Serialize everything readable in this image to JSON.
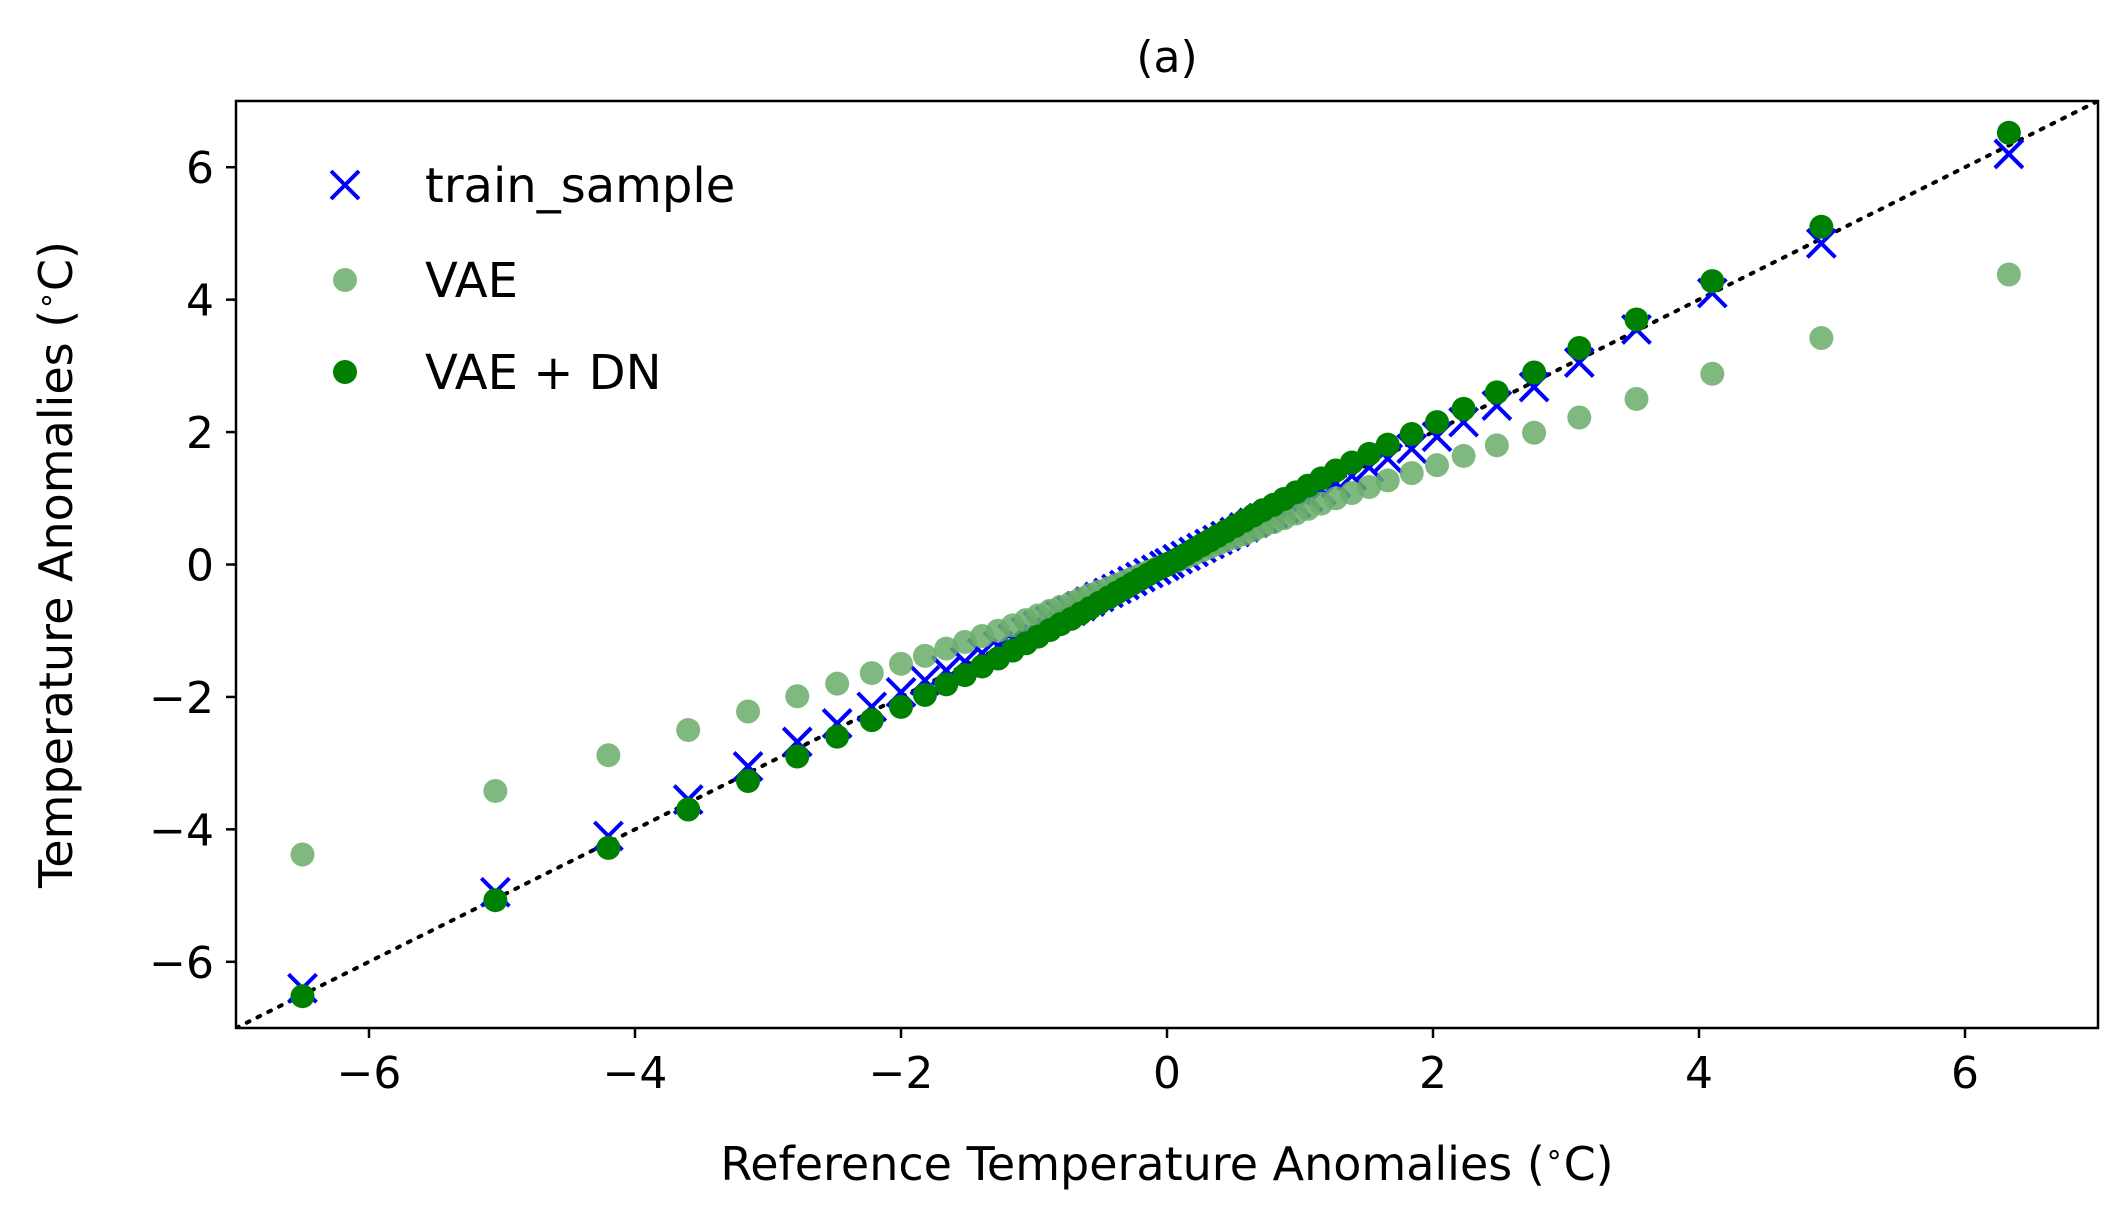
{
  "chart_data": {
    "type": "scatter",
    "title": "(a)",
    "xlabel": "Reference Temperature Anomalies ($^\\circ$C)",
    "xlabel_text": "Reference Temperature Anomalies (",
    "xlabel_unit": "C)",
    "ylabel_text": "Temperature Anomalies (",
    "ylabel_unit": "C)",
    "degree_symbol": "∘",
    "xlim": [
      -7,
      7
    ],
    "ylim": [
      -7,
      7
    ],
    "xticks": [
      -6,
      -4,
      -2,
      0,
      2,
      4,
      6
    ],
    "yticks": [
      -6,
      -4,
      -2,
      0,
      2,
      4,
      6
    ],
    "tick_labels": [
      "−6",
      "−4",
      "−2",
      "0",
      "2",
      "4",
      "6"
    ],
    "reference_line": {
      "style": "dotted",
      "color": "#000000",
      "from": [
        -7,
        -7
      ],
      "to": [
        7,
        7
      ]
    },
    "legend_position": "upper-left",
    "colors": {
      "train_sample": "#0000ff",
      "vae": "#6aad6a",
      "vae_dn": "#008000"
    },
    "x": [
      -6.5,
      -5.05,
      -4.2,
      -3.6,
      -3.15,
      -2.78,
      -2.48,
      -2.22,
      -2.0,
      -1.82,
      -1.66,
      -1.52,
      -1.39,
      -1.27,
      -1.16,
      -1.06,
      -0.97,
      -0.88,
      -0.8,
      -0.72,
      -0.65,
      -0.58,
      -0.51,
      -0.44,
      -0.38,
      -0.32,
      -0.26,
      -0.2,
      -0.14,
      -0.08,
      -0.02,
      0.02,
      0.08,
      0.14,
      0.2,
      0.26,
      0.32,
      0.38,
      0.44,
      0.51,
      0.58,
      0.65,
      0.72,
      0.8,
      0.88,
      0.97,
      1.06,
      1.16,
      1.27,
      1.39,
      1.52,
      1.66,
      1.84,
      2.03,
      2.23,
      2.48,
      2.76,
      3.1,
      3.53,
      4.1,
      4.92,
      6.33
    ],
    "series": [
      {
        "name": "train_sample",
        "marker": "x",
        "values": [
          -6.4,
          -4.95,
          -4.1,
          -3.55,
          -3.05,
          -2.68,
          -2.4,
          -2.15,
          -1.93,
          -1.75,
          -1.6,
          -1.47,
          -1.34,
          -1.23,
          -1.12,
          -1.02,
          -0.93,
          -0.85,
          -0.77,
          -0.7,
          -0.63,
          -0.56,
          -0.49,
          -0.43,
          -0.37,
          -0.31,
          -0.25,
          -0.19,
          -0.13,
          -0.08,
          -0.02,
          0.02,
          0.08,
          0.13,
          0.19,
          0.25,
          0.31,
          0.37,
          0.43,
          0.49,
          0.56,
          0.63,
          0.7,
          0.77,
          0.85,
          0.93,
          1.02,
          1.12,
          1.23,
          1.34,
          1.47,
          1.6,
          1.75,
          1.93,
          2.15,
          2.4,
          2.68,
          3.05,
          3.55,
          4.1,
          4.85,
          6.2
        ]
      },
      {
        "name": "VAE",
        "marker": "o-faded",
        "values": [
          -4.38,
          -3.42,
          -2.88,
          -2.5,
          -2.22,
          -1.99,
          -1.8,
          -1.64,
          -1.5,
          -1.38,
          -1.27,
          -1.17,
          -1.08,
          -1.0,
          -0.92,
          -0.84,
          -0.77,
          -0.7,
          -0.64,
          -0.58,
          -0.52,
          -0.46,
          -0.41,
          -0.36,
          -0.31,
          -0.26,
          -0.21,
          -0.16,
          -0.11,
          -0.06,
          -0.02,
          0.02,
          0.06,
          0.11,
          0.16,
          0.21,
          0.26,
          0.31,
          0.36,
          0.41,
          0.46,
          0.52,
          0.58,
          0.64,
          0.7,
          0.77,
          0.84,
          0.92,
          1.0,
          1.08,
          1.17,
          1.27,
          1.38,
          1.5,
          1.64,
          1.8,
          1.99,
          2.22,
          2.5,
          2.88,
          3.42,
          4.38
        ]
      },
      {
        "name": "VAE + DN",
        "marker": "o",
        "values": [
          -6.52,
          -5.07,
          -4.28,
          -3.7,
          -3.27,
          -2.9,
          -2.6,
          -2.35,
          -2.15,
          -1.97,
          -1.81,
          -1.67,
          -1.54,
          -1.42,
          -1.3,
          -1.19,
          -1.09,
          -0.99,
          -0.9,
          -0.82,
          -0.74,
          -0.66,
          -0.58,
          -0.5,
          -0.43,
          -0.36,
          -0.29,
          -0.22,
          -0.15,
          -0.08,
          -0.02,
          0.02,
          0.08,
          0.15,
          0.22,
          0.29,
          0.36,
          0.43,
          0.5,
          0.58,
          0.66,
          0.74,
          0.82,
          0.9,
          0.99,
          1.09,
          1.19,
          1.3,
          1.42,
          1.54,
          1.67,
          1.81,
          1.97,
          2.15,
          2.35,
          2.6,
          2.9,
          3.27,
          3.7,
          4.28,
          5.1,
          6.52
        ]
      }
    ]
  }
}
